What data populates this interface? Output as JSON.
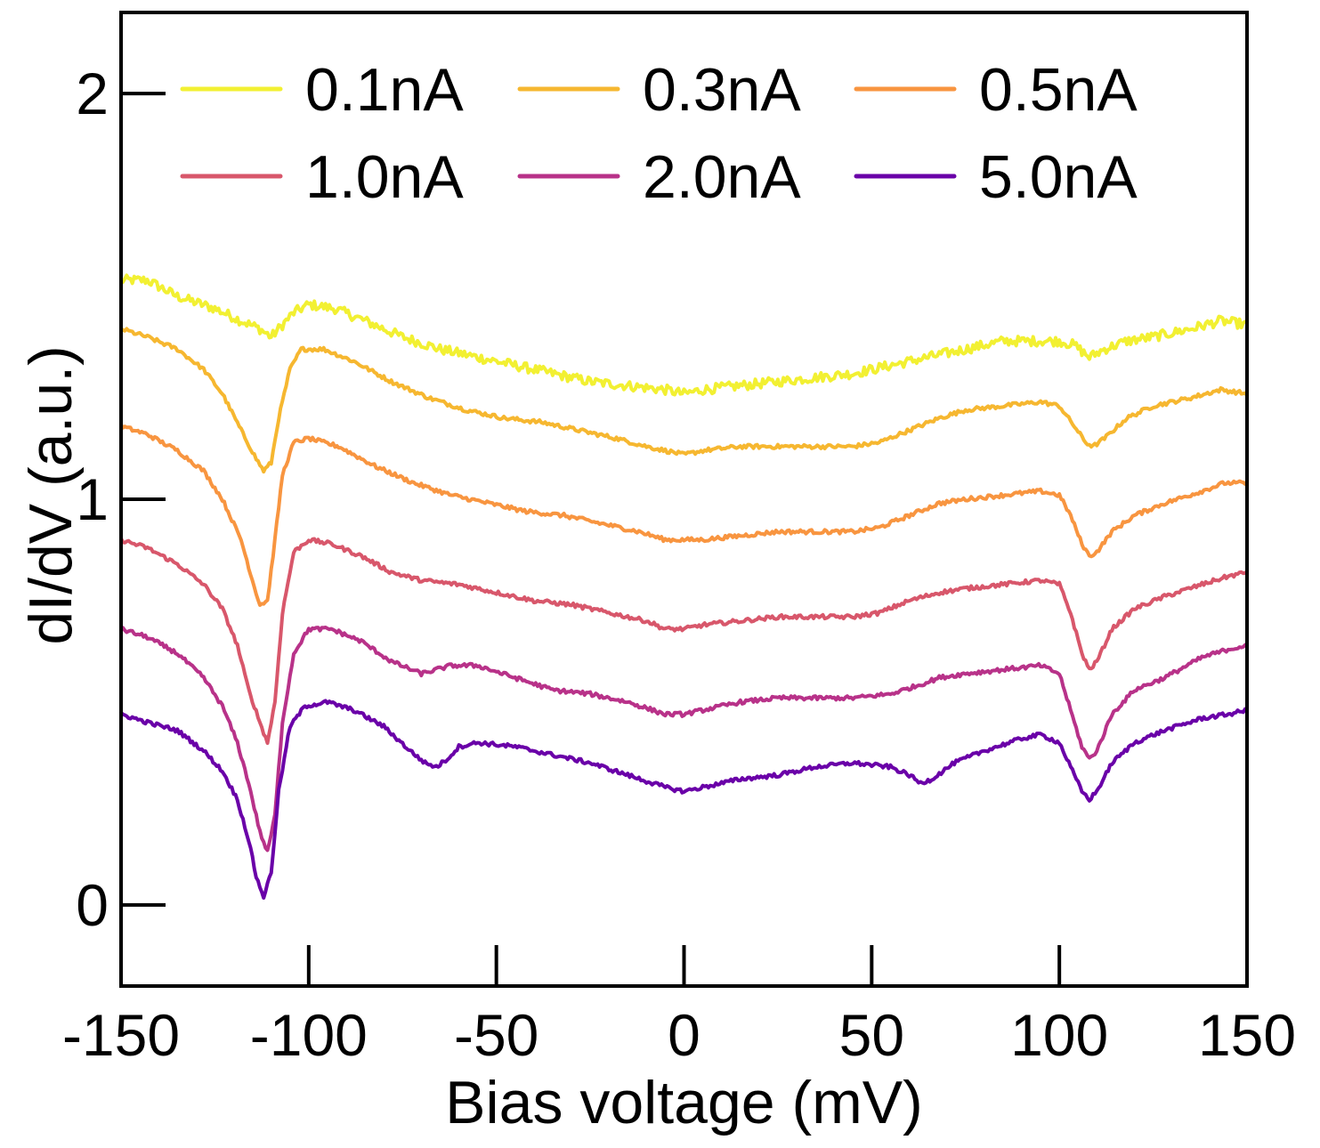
{
  "chart_data": {
    "type": "line",
    "title": "",
    "xlabel": "Bias voltage (mV)",
    "ylabel": "dI/dV (a.u.)",
    "xlim": [
      -150,
      150
    ],
    "ylim": [
      -0.2,
      2.2
    ],
    "xticks": [
      -150,
      -100,
      -50,
      0,
      50,
      100,
      150
    ],
    "yticks": [
      0,
      1,
      2
    ],
    "legend_placement": "top",
    "grid": false,
    "series": [
      {
        "name": "0.1nA",
        "color": "#f2f032",
        "points": [
          [
            -150,
            1.54
          ],
          [
            -143,
            1.54
          ],
          [
            -135,
            1.5
          ],
          [
            -125,
            1.47
          ],
          [
            -118,
            1.44
          ],
          [
            -113,
            1.42
          ],
          [
            -110,
            1.4
          ],
          [
            -107,
            1.43
          ],
          [
            -104,
            1.46
          ],
          [
            -100,
            1.48
          ],
          [
            -93,
            1.47
          ],
          [
            -85,
            1.44
          ],
          [
            -75,
            1.4
          ],
          [
            -65,
            1.37
          ],
          [
            -55,
            1.35
          ],
          [
            -45,
            1.33
          ],
          [
            -35,
            1.31
          ],
          [
            -25,
            1.29
          ],
          [
            -15,
            1.28
          ],
          [
            -5,
            1.27
          ],
          [
            0,
            1.26
          ],
          [
            5,
            1.27
          ],
          [
            15,
            1.28
          ],
          [
            25,
            1.29
          ],
          [
            35,
            1.3
          ],
          [
            45,
            1.31
          ],
          [
            55,
            1.33
          ],
          [
            65,
            1.35
          ],
          [
            75,
            1.37
          ],
          [
            85,
            1.39
          ],
          [
            95,
            1.39
          ],
          [
            100,
            1.39
          ],
          [
            104,
            1.38
          ],
          [
            108,
            1.35
          ],
          [
            112,
            1.37
          ],
          [
            118,
            1.39
          ],
          [
            125,
            1.4
          ],
          [
            135,
            1.42
          ],
          [
            143,
            1.44
          ],
          [
            150,
            1.43
          ]
        ]
      },
      {
        "name": "0.3nA",
        "color": "#f6b730",
        "points": [
          [
            -150,
            1.42
          ],
          [
            -143,
            1.4
          ],
          [
            -135,
            1.37
          ],
          [
            -128,
            1.32
          ],
          [
            -123,
            1.26
          ],
          [
            -118,
            1.17
          ],
          [
            -114,
            1.1
          ],
          [
            -112,
            1.07
          ],
          [
            -110,
            1.09
          ],
          [
            -108,
            1.2
          ],
          [
            -105,
            1.32
          ],
          [
            -102,
            1.37
          ],
          [
            -96,
            1.37
          ],
          [
            -88,
            1.34
          ],
          [
            -78,
            1.29
          ],
          [
            -68,
            1.25
          ],
          [
            -58,
            1.22
          ],
          [
            -48,
            1.2
          ],
          [
            -38,
            1.19
          ],
          [
            -28,
            1.17
          ],
          [
            -18,
            1.15
          ],
          [
            -10,
            1.13
          ],
          [
            -5,
            1.12
          ],
          [
            0,
            1.11
          ],
          [
            5,
            1.12
          ],
          [
            15,
            1.13
          ],
          [
            25,
            1.13
          ],
          [
            35,
            1.13
          ],
          [
            45,
            1.13
          ],
          [
            52,
            1.14
          ],
          [
            60,
            1.17
          ],
          [
            68,
            1.2
          ],
          [
            75,
            1.22
          ],
          [
            85,
            1.23
          ],
          [
            95,
            1.24
          ],
          [
            100,
            1.23
          ],
          [
            104,
            1.18
          ],
          [
            107,
            1.14
          ],
          [
            109,
            1.13
          ],
          [
            112,
            1.15
          ],
          [
            118,
            1.2
          ],
          [
            125,
            1.23
          ],
          [
            135,
            1.25
          ],
          [
            143,
            1.27
          ],
          [
            150,
            1.26
          ]
        ]
      },
      {
        "name": "0.5nA",
        "color": "#f89540",
        "points": [
          [
            -150,
            1.18
          ],
          [
            -143,
            1.16
          ],
          [
            -135,
            1.12
          ],
          [
            -128,
            1.07
          ],
          [
            -123,
            1.0
          ],
          [
            -118,
            0.9
          ],
          [
            -115,
            0.8
          ],
          [
            -113,
            0.74
          ],
          [
            -111,
            0.75
          ],
          [
            -109,
            0.9
          ],
          [
            -107,
            1.06
          ],
          [
            -104,
            1.14
          ],
          [
            -100,
            1.15
          ],
          [
            -92,
            1.13
          ],
          [
            -82,
            1.08
          ],
          [
            -72,
            1.04
          ],
          [
            -62,
            1.01
          ],
          [
            -52,
            0.99
          ],
          [
            -42,
            0.97
          ],
          [
            -32,
            0.96
          ],
          [
            -22,
            0.94
          ],
          [
            -12,
            0.92
          ],
          [
            -5,
            0.9
          ],
          [
            0,
            0.9
          ],
          [
            5,
            0.9
          ],
          [
            15,
            0.91
          ],
          [
            25,
            0.92
          ],
          [
            35,
            0.92
          ],
          [
            45,
            0.92
          ],
          [
            52,
            0.93
          ],
          [
            60,
            0.96
          ],
          [
            68,
            0.99
          ],
          [
            75,
            1.0
          ],
          [
            85,
            1.01
          ],
          [
            95,
            1.02
          ],
          [
            100,
            1.01
          ],
          [
            103,
            0.96
          ],
          [
            106,
            0.89
          ],
          [
            108,
            0.86
          ],
          [
            110,
            0.87
          ],
          [
            114,
            0.92
          ],
          [
            120,
            0.96
          ],
          [
            128,
            0.99
          ],
          [
            138,
            1.02
          ],
          [
            144,
            1.04
          ],
          [
            150,
            1.04
          ]
        ]
      },
      {
        "name": "1.0nA",
        "color": "#d8576b",
        "points": [
          [
            -150,
            0.9
          ],
          [
            -143,
            0.88
          ],
          [
            -135,
            0.84
          ],
          [
            -128,
            0.79
          ],
          [
            -123,
            0.73
          ],
          [
            -119,
            0.64
          ],
          [
            -116,
            0.53
          ],
          [
            -113,
            0.45
          ],
          [
            -111,
            0.4
          ],
          [
            -109,
            0.5
          ],
          [
            -107,
            0.72
          ],
          [
            -104,
            0.87
          ],
          [
            -100,
            0.9
          ],
          [
            -94,
            0.89
          ],
          [
            -86,
            0.86
          ],
          [
            -78,
            0.82
          ],
          [
            -70,
            0.8
          ],
          [
            -60,
            0.79
          ],
          [
            -50,
            0.77
          ],
          [
            -40,
            0.75
          ],
          [
            -30,
            0.74
          ],
          [
            -20,
            0.72
          ],
          [
            -10,
            0.7
          ],
          [
            -5,
            0.68
          ],
          [
            0,
            0.68
          ],
          [
            5,
            0.69
          ],
          [
            15,
            0.7
          ],
          [
            25,
            0.71
          ],
          [
            35,
            0.71
          ],
          [
            45,
            0.71
          ],
          [
            52,
            0.72
          ],
          [
            60,
            0.75
          ],
          [
            68,
            0.77
          ],
          [
            75,
            0.78
          ],
          [
            85,
            0.79
          ],
          [
            95,
            0.8
          ],
          [
            100,
            0.79
          ],
          [
            103,
            0.72
          ],
          [
            106,
            0.62
          ],
          [
            108,
            0.58
          ],
          [
            110,
            0.6
          ],
          [
            114,
            0.68
          ],
          [
            120,
            0.73
          ],
          [
            128,
            0.76
          ],
          [
            138,
            0.79
          ],
          [
            145,
            0.81
          ],
          [
            150,
            0.82
          ]
        ]
      },
      {
        "name": "2.0nA",
        "color": "#b83289",
        "points": [
          [
            -150,
            0.68
          ],
          [
            -143,
            0.66
          ],
          [
            -135,
            0.62
          ],
          [
            -128,
            0.56
          ],
          [
            -123,
            0.49
          ],
          [
            -119,
            0.4
          ],
          [
            -116,
            0.3
          ],
          [
            -113,
            0.18
          ],
          [
            -111,
            0.13
          ],
          [
            -109,
            0.22
          ],
          [
            -107,
            0.45
          ],
          [
            -104,
            0.62
          ],
          [
            -100,
            0.68
          ],
          [
            -94,
            0.68
          ],
          [
            -86,
            0.65
          ],
          [
            -78,
            0.6
          ],
          [
            -70,
            0.57
          ],
          [
            -62,
            0.59
          ],
          [
            -55,
            0.59
          ],
          [
            -45,
            0.56
          ],
          [
            -35,
            0.53
          ],
          [
            -25,
            0.52
          ],
          [
            -15,
            0.5
          ],
          [
            -5,
            0.47
          ],
          [
            0,
            0.47
          ],
          [
            5,
            0.48
          ],
          [
            15,
            0.5
          ],
          [
            25,
            0.51
          ],
          [
            35,
            0.51
          ],
          [
            45,
            0.51
          ],
          [
            55,
            0.52
          ],
          [
            62,
            0.54
          ],
          [
            68,
            0.56
          ],
          [
            75,
            0.57
          ],
          [
            85,
            0.58
          ],
          [
            95,
            0.59
          ],
          [
            100,
            0.57
          ],
          [
            103,
            0.48
          ],
          [
            106,
            0.39
          ],
          [
            108,
            0.36
          ],
          [
            110,
            0.38
          ],
          [
            114,
            0.47
          ],
          [
            120,
            0.53
          ],
          [
            128,
            0.56
          ],
          [
            138,
            0.61
          ],
          [
            145,
            0.63
          ],
          [
            150,
            0.64
          ]
        ]
      },
      {
        "name": "5.0nA",
        "color": "#6a00a8",
        "points": [
          [
            -150,
            0.47
          ],
          [
            -143,
            0.45
          ],
          [
            -135,
            0.43
          ],
          [
            -128,
            0.38
          ],
          [
            -123,
            0.33
          ],
          [
            -119,
            0.26
          ],
          [
            -116,
            0.16
          ],
          [
            -114,
            0.07
          ],
          [
            -112,
            0.02
          ],
          [
            -110,
            0.08
          ],
          [
            -108,
            0.28
          ],
          [
            -105,
            0.44
          ],
          [
            -101,
            0.49
          ],
          [
            -95,
            0.5
          ],
          [
            -88,
            0.48
          ],
          [
            -80,
            0.44
          ],
          [
            -73,
            0.38
          ],
          [
            -69,
            0.35
          ],
          [
            -66,
            0.34
          ],
          [
            -63,
            0.36
          ],
          [
            -60,
            0.39
          ],
          [
            -55,
            0.4
          ],
          [
            -45,
            0.39
          ],
          [
            -35,
            0.37
          ],
          [
            -25,
            0.35
          ],
          [
            -15,
            0.32
          ],
          [
            -5,
            0.29
          ],
          [
            0,
            0.28
          ],
          [
            5,
            0.29
          ],
          [
            15,
            0.31
          ],
          [
            25,
            0.32
          ],
          [
            35,
            0.34
          ],
          [
            45,
            0.35
          ],
          [
            55,
            0.34
          ],
          [
            60,
            0.32
          ],
          [
            63,
            0.3
          ],
          [
            66,
            0.31
          ],
          [
            72,
            0.35
          ],
          [
            80,
            0.38
          ],
          [
            90,
            0.41
          ],
          [
            95,
            0.42
          ],
          [
            100,
            0.4
          ],
          [
            103,
            0.34
          ],
          [
            106,
            0.28
          ],
          [
            108,
            0.26
          ],
          [
            110,
            0.28
          ],
          [
            114,
            0.35
          ],
          [
            120,
            0.4
          ],
          [
            128,
            0.43
          ],
          [
            138,
            0.46
          ],
          [
            145,
            0.47
          ],
          [
            150,
            0.48
          ]
        ]
      }
    ]
  }
}
